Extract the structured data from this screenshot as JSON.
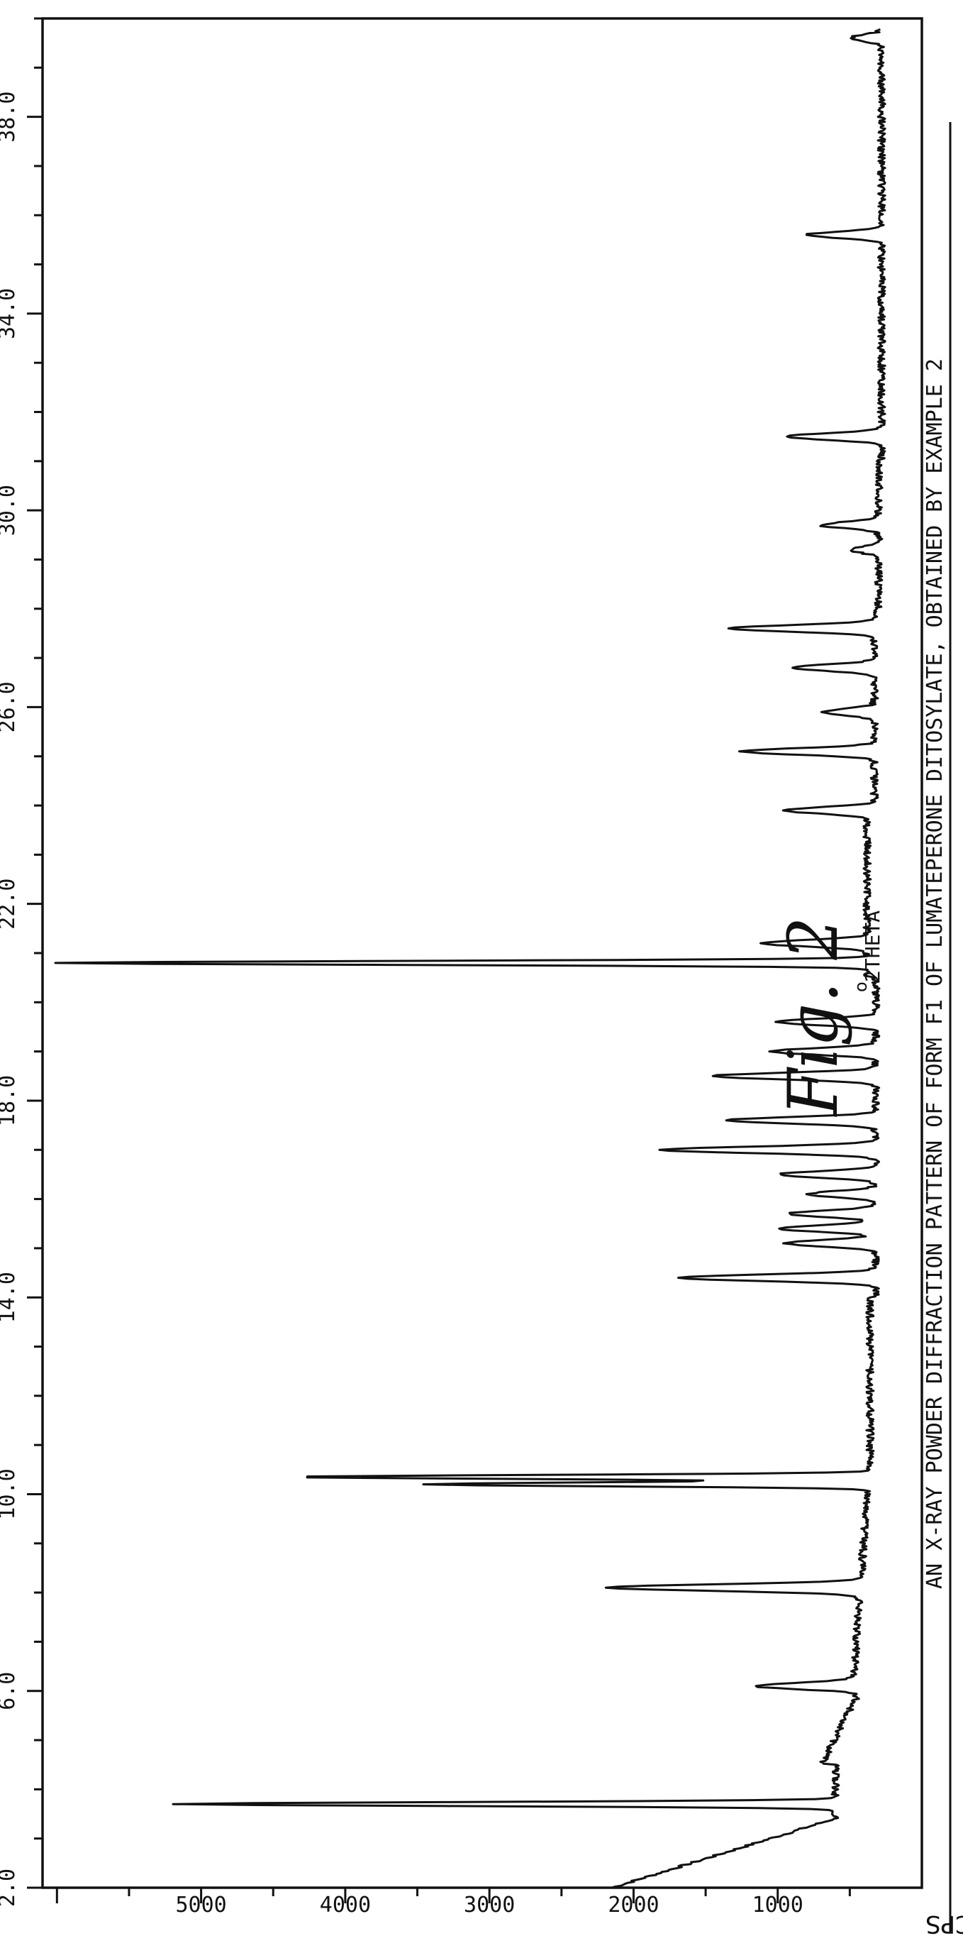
{
  "chart_data": {
    "type": "line",
    "title": "AN X-RAY POWDER DIFFRACTION PATTERN OF FORM F1 OF LUMATEPERONE DITOSYLATE, OBTAINED BY EXAMPLE 2",
    "xlabel_degree": "o",
    "xlabel": "2THETA",
    "ylabel": "CPS",
    "figure_label": "Fig. 2",
    "xlim": [
      2.0,
      40.0
    ],
    "ylim": [
      0,
      6100
    ],
    "x_ticks": [
      2.0,
      6.0,
      10.0,
      14.0,
      18.0,
      22.0,
      26.0,
      30.0,
      34.0,
      38.0
    ],
    "x_tick_labels": [
      "2.0",
      "6.0",
      "10.0",
      "14.0",
      "18.0",
      "22.0",
      "26.0",
      "30.0",
      "34.0",
      "38.0"
    ],
    "y_ticks": [
      1000,
      2000,
      3000,
      4000,
      5000
    ],
    "y_tick_labels": [
      "1000",
      "2000",
      "3000",
      "4000",
      "5000"
    ],
    "grid": false,
    "orientation": "rotated 90 degrees counter-clockwise",
    "peaks": [
      {
        "x": 3.7,
        "y": 5200
      },
      {
        "x": 6.1,
        "y": 1150
      },
      {
        "x": 8.1,
        "y": 2200
      },
      {
        "x": 10.2,
        "y": 3480
      },
      {
        "x": 10.35,
        "y": 4380
      },
      {
        "x": 14.4,
        "y": 1700
      },
      {
        "x": 15.1,
        "y": 950
      },
      {
        "x": 15.4,
        "y": 1000
      },
      {
        "x": 15.7,
        "y": 930
      },
      {
        "x": 16.1,
        "y": 780
      },
      {
        "x": 16.5,
        "y": 1000
      },
      {
        "x": 17.0,
        "y": 1800
      },
      {
        "x": 17.6,
        "y": 1350
      },
      {
        "x": 18.5,
        "y": 1450
      },
      {
        "x": 19.0,
        "y": 1050
      },
      {
        "x": 19.6,
        "y": 1000
      },
      {
        "x": 20.8,
        "y": 6000
      },
      {
        "x": 21.2,
        "y": 1120
      },
      {
        "x": 23.9,
        "y": 950
      },
      {
        "x": 25.1,
        "y": 1250
      },
      {
        "x": 25.9,
        "y": 700
      },
      {
        "x": 26.8,
        "y": 900
      },
      {
        "x": 27.6,
        "y": 1350
      },
      {
        "x": 29.2,
        "y": 500
      },
      {
        "x": 29.7,
        "y": 700
      },
      {
        "x": 31.5,
        "y": 950
      },
      {
        "x": 35.6,
        "y": 800
      },
      {
        "x": 39.6,
        "y": 500
      }
    ]
  }
}
